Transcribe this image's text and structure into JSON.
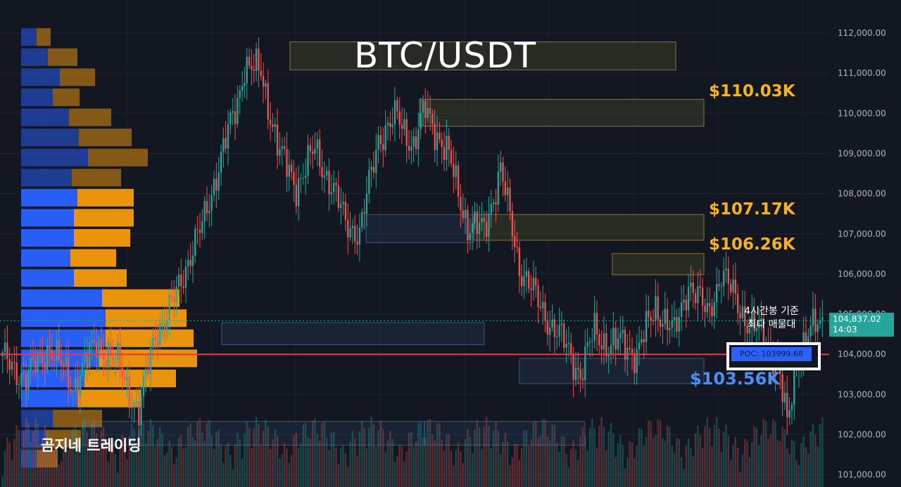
{
  "chart_data": {
    "type": "candlestick",
    "title": "BTC/USDT",
    "y_axis": {
      "ticks": [
        "112,000.00",
        "111,000.00",
        "110,000.00",
        "109,000.00",
        "108,000.00",
        "107,000.00",
        "106,000.00",
        "105,000.00",
        "104,000.00",
        "103,000.00",
        "102,000.00",
        "101,000.00"
      ],
      "ylim": [
        100300,
        112400
      ]
    },
    "current_price": {
      "value": "104,837.02",
      "countdown": "14:03"
    },
    "levels": [
      {
        "label": "$110.03K",
        "value": 110030
      },
      {
        "label": "$107.17K",
        "value": 107170
      },
      {
        "label": "$106.26K",
        "value": 106260
      },
      {
        "label": "$103.56K",
        "value": 103560
      }
    ],
    "poc": {
      "label": "POC: 103999.68",
      "value": 103999.68
    },
    "annotation_lines": [
      "4시간봉 기준",
      "최다 매물대"
    ],
    "close_anchors": [
      [
        0,
        103900
      ],
      [
        10,
        103400
      ],
      [
        20,
        104200
      ],
      [
        30,
        103200
      ],
      [
        40,
        104300
      ],
      [
        50,
        103700
      ],
      [
        58,
        102500
      ],
      [
        65,
        104600
      ],
      [
        70,
        104900
      ],
      [
        78,
        106200
      ],
      [
        85,
        107200
      ],
      [
        92,
        108700
      ],
      [
        100,
        110300
      ],
      [
        103,
        111200
      ],
      [
        110,
        111000
      ],
      [
        118,
        109000
      ],
      [
        125,
        108200
      ],
      [
        133,
        109100
      ],
      [
        140,
        108200
      ],
      [
        146,
        107300
      ],
      [
        152,
        107000
      ],
      [
        160,
        109400
      ],
      [
        168,
        109900
      ],
      [
        175,
        109200
      ],
      [
        180,
        110100
      ],
      [
        190,
        108900
      ],
      [
        198,
        107200
      ],
      [
        205,
        107100
      ],
      [
        212,
        108600
      ],
      [
        220,
        106200
      ],
      [
        228,
        105300
      ],
      [
        234,
        104700
      ],
      [
        240,
        104200
      ],
      [
        246,
        103500
      ],
      [
        252,
        104600
      ],
      [
        258,
        104200
      ],
      [
        264,
        104300
      ],
      [
        270,
        104000
      ],
      [
        278,
        105200
      ],
      [
        286,
        104500
      ],
      [
        292,
        105800
      ],
      [
        300,
        105000
      ],
      [
        306,
        106000
      ],
      [
        312,
        105400
      ],
      [
        318,
        104700
      ],
      [
        324,
        104500
      ],
      [
        330,
        103800
      ],
      [
        334,
        102200
      ],
      [
        338,
        103800
      ],
      [
        342,
        104400
      ],
      [
        346,
        104700
      ],
      [
        349,
        104800
      ]
    ],
    "volume_profile": {
      "price_levels": [
        111900,
        111400,
        110900,
        110400,
        109900,
        109400,
        108900,
        108400,
        107900,
        107400,
        106900,
        106400,
        105900,
        105400,
        104900,
        104400,
        103900,
        103400,
        102900,
        102400,
        101900,
        101400
      ],
      "buy_volume": [
        22,
        38,
        55,
        45,
        68,
        82,
        95,
        72,
        80,
        75,
        75,
        70,
        75,
        115,
        120,
        120,
        110,
        90,
        80,
        45,
        35,
        22
      ],
      "sell_volume": [
        20,
        42,
        50,
        38,
        60,
        75,
        85,
        70,
        80,
        85,
        80,
        65,
        75,
        110,
        115,
        125,
        140,
        130,
        90,
        70,
        50,
        30
      ]
    }
  },
  "labels": {
    "title": "BTC/USDT",
    "level_1": "$110.03K",
    "level_2": "$107.17K",
    "level_3": "$106.26K",
    "level_4": "$103.56K",
    "note_line1": "4시간봉 기준",
    "note_line2": "최다 매물대",
    "poc": "POC: 103999.68",
    "brand": "곰지네 트레이딩",
    "price": "104,837.02",
    "countdown": "14:03"
  },
  "colors": {
    "background": "#131722",
    "bull": "#26a69a",
    "bear": "#ef5350",
    "poc_line": "#f23645",
    "level_text": "#f5b324",
    "support_text": "#4d8ef0",
    "profile_buy": "#2962ff",
    "profile_sell": "#f59a0c"
  }
}
